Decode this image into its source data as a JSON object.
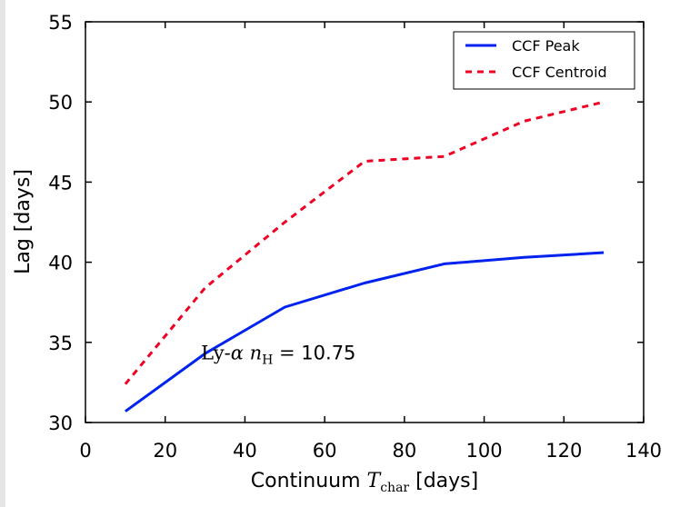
{
  "chart_data": {
    "type": "line",
    "xlabel": "Continuum T_char [days]",
    "xlabel_prefix": "Continuum ",
    "xlabel_symbol": "T",
    "xlabel_subscript": "char",
    "xlabel_suffix": " [days]",
    "ylabel": "Lag [days]",
    "xlim": [
      0,
      140
    ],
    "ylim": [
      30,
      55
    ],
    "x_ticks": [
      0,
      20,
      40,
      60,
      80,
      100,
      120,
      140
    ],
    "y_ticks": [
      30,
      35,
      40,
      45,
      50,
      55
    ],
    "grid": false,
    "legend_position": "top-right",
    "series": [
      {
        "name": "CCF Peak",
        "color": "#0022ee",
        "style": "solid",
        "x": [
          10,
          30,
          50,
          70,
          90,
          110,
          130
        ],
        "y": [
          30.7,
          34.3,
          37.2,
          38.7,
          39.9,
          40.3,
          40.6
        ]
      },
      {
        "name": "CCF Centroid",
        "color": "#ee0022",
        "style": "dashed",
        "x": [
          10,
          30,
          50,
          70,
          90,
          110,
          130
        ],
        "y": [
          32.4,
          38.4,
          42.5,
          46.3,
          46.6,
          48.8,
          50.0
        ]
      }
    ],
    "annotation": {
      "text": "Ly-α n_H = 10.75",
      "prefix": "Ly-",
      "alpha": "α",
      "n": "n",
      "sub": "H",
      "eq": " = ",
      "value": "10.75",
      "x": 29,
      "y": 34.4
    }
  }
}
